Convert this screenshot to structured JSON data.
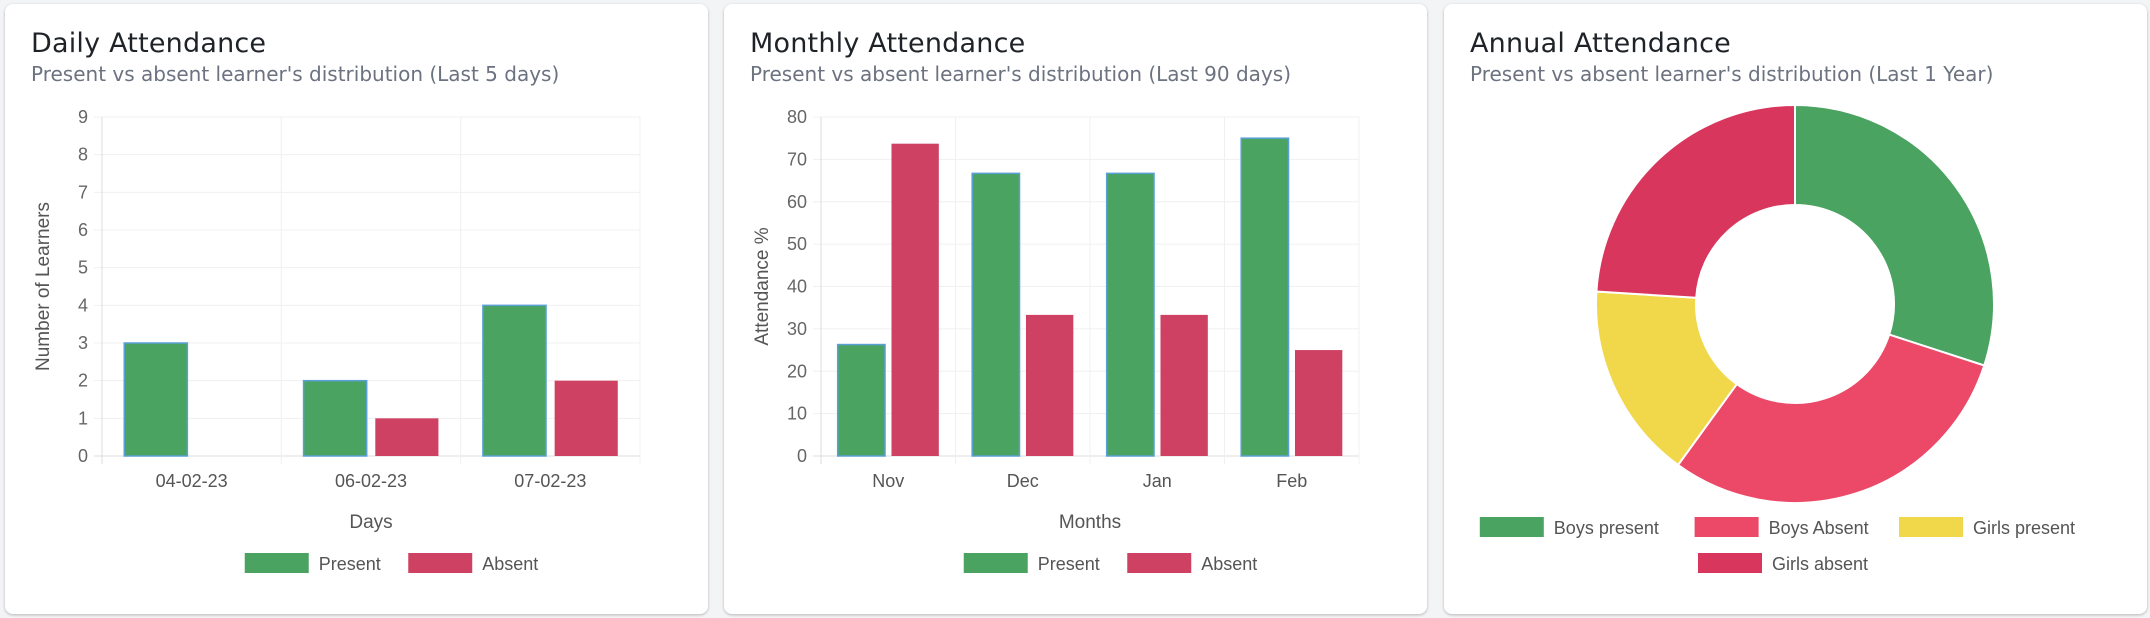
{
  "cards": [
    {
      "title": "Daily Attendance",
      "subtitle": "Present vs absent learner's distribution (Last 5 days)"
    },
    {
      "title": "Monthly Attendance",
      "subtitle": "Present vs absent learner's distribution (Last 90 days)"
    },
    {
      "title": "Annual Attendance",
      "subtitle": "Present vs absent learner's distribution (Last 1 Year)"
    }
  ],
  "chart_data": [
    {
      "type": "bar",
      "title": "Daily Attendance",
      "subtitle": "Present vs absent learner's distribution (Last 5 days)",
      "xlabel": "Days",
      "ylabel": "Number of Learners",
      "categories": [
        "04-02-23",
        "06-02-23",
        "07-02-23"
      ],
      "series": [
        {
          "name": "Present",
          "values": [
            3,
            2,
            4
          ],
          "color": "#4ba361"
        },
        {
          "name": "Absent",
          "values": [
            0,
            1,
            2
          ],
          "color": "#cf4162"
        }
      ],
      "ylim": [
        0,
        9
      ],
      "yticks": [
        0,
        1,
        2,
        3,
        4,
        5,
        6,
        7,
        8,
        9
      ],
      "grid": true,
      "legend": "bottom"
    },
    {
      "type": "bar",
      "title": "Monthly Attendance",
      "subtitle": "Present vs absent learner's distribution (Last 90 days)",
      "xlabel": "Months",
      "ylabel": "Attendance %",
      "categories": [
        "Nov",
        "Dec",
        "Jan",
        "Feb"
      ],
      "series": [
        {
          "name": "Present",
          "values": [
            26.3,
            66.7,
            66.7,
            75
          ],
          "color": "#4ba361"
        },
        {
          "name": "Absent",
          "values": [
            73.7,
            33.3,
            33.3,
            25
          ],
          "color": "#cf4162"
        }
      ],
      "ylim": [
        0,
        80
      ],
      "yticks": [
        0,
        10,
        20,
        30,
        40,
        50,
        60,
        70,
        80
      ],
      "grid": true,
      "legend": "bottom"
    },
    {
      "type": "pie",
      "title": "Annual Attendance",
      "subtitle": "Present vs absent learner's distribution (Last 1 Year)",
      "donut": true,
      "labels": [
        "Boys present",
        "Boys Absent",
        "Girls present",
        "Girls absent"
      ],
      "values": [
        30,
        30,
        16,
        24
      ],
      "colors": [
        "#4ba361",
        "#ec4868",
        "#f0d84a",
        "#d8365d"
      ],
      "legend": "bottom"
    }
  ]
}
